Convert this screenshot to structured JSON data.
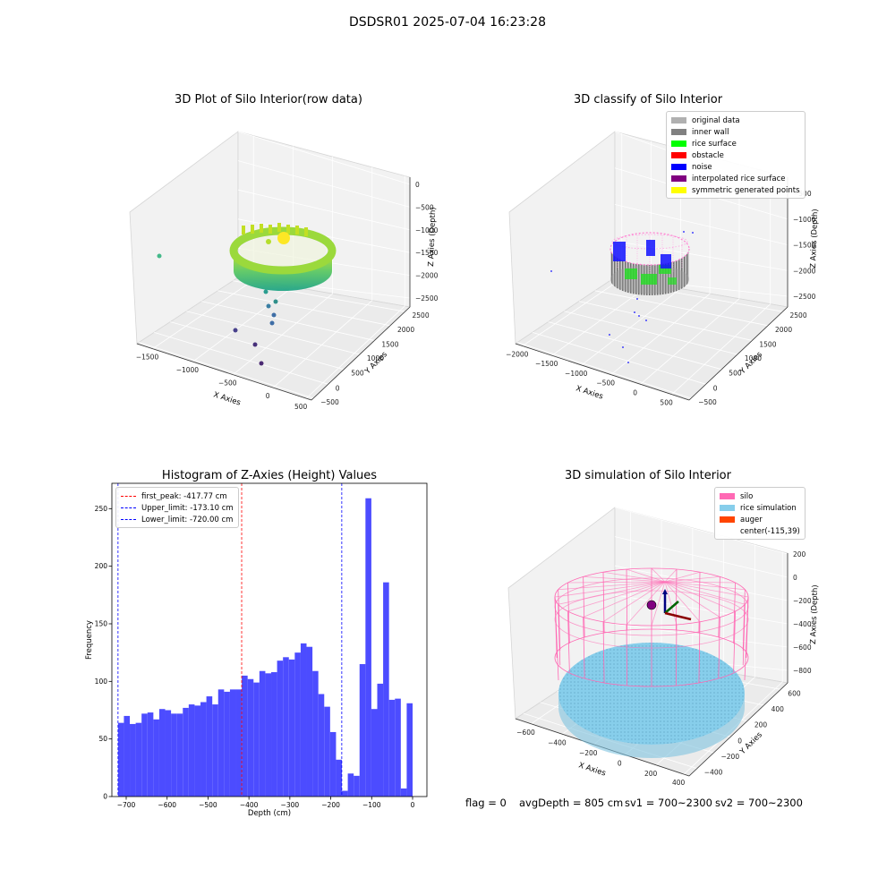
{
  "suptitle": "DSDSR01 2025-07-04 16:23:28",
  "footer": {
    "flag": "flag = 0",
    "avg_depth": "avgDepth = 805 cm",
    "sv1": "sv1 = 700~2300",
    "sv2": "sv2 = 700~2300"
  },
  "chart_data": [
    {
      "type": "scatter",
      "title": "3D Plot of Silo Interior(row data)",
      "xlabel": "X Axies",
      "ylabel": "Y Axies",
      "zlabel": "Z Axies (Depth)",
      "x_ticks": [
        "−1500",
        "−1000",
        "−500",
        "0",
        "500"
      ],
      "y_ticks": [
        "−500",
        "0",
        "500",
        "1000",
        "1500",
        "2000",
        "2500"
      ],
      "z_ticks": [
        "0",
        "−500",
        "−1000",
        "−1500",
        "−2000",
        "−2500"
      ],
      "colormap": "viridis"
    },
    {
      "type": "scatter",
      "title": "3D classify of Silo Interior",
      "xlabel": "X Axies",
      "ylabel": "Y Axies",
      "zlabel": "Z Axies (Depth)",
      "x_ticks": [
        "−2000",
        "−1500",
        "−1000",
        "−500",
        "0",
        "500"
      ],
      "y_ticks": [
        "−500",
        "0",
        "500",
        "1000",
        "1500",
        "2000",
        "2500"
      ],
      "z_ticks": [
        "−500",
        "−1000",
        "−1500",
        "−2000",
        "−2500"
      ],
      "legend": [
        {
          "label": "original data",
          "color": "#b0b0b0"
        },
        {
          "label": "inner wall",
          "color": "#808080"
        },
        {
          "label": "rice surface",
          "color": "#00ff00"
        },
        {
          "label": "obstacle",
          "color": "#ff0000"
        },
        {
          "label": "noise",
          "color": "#0000ff"
        },
        {
          "label": "interpolated rice surface",
          "color": "#800080"
        },
        {
          "label": "symmetric generated points",
          "color": "#ffff00"
        }
      ]
    },
    {
      "type": "bar",
      "title": "Histogram of Z-Axies (Height) Values",
      "xlabel": "Depth (cm)",
      "ylabel": "Frequency",
      "bar_color": "#4c4cff",
      "xlim": [
        -735,
        35
      ],
      "ylim": [
        0,
        272
      ],
      "x_ticks": [
        -700,
        -600,
        -500,
        -400,
        -300,
        -200,
        -100,
        0
      ],
      "y_ticks": [
        0,
        50,
        100,
        150,
        200,
        250
      ],
      "bin_start": -720,
      "bin_width": 14.4,
      "values": [
        64,
        70,
        63,
        64,
        72,
        73,
        67,
        76,
        75,
        72,
        72,
        77,
        80,
        79,
        82,
        87,
        80,
        93,
        91,
        93,
        93,
        105,
        102,
        99,
        109,
        107,
        108,
        118,
        121,
        119,
        125,
        133,
        130,
        109,
        89,
        78,
        56,
        32,
        5,
        20,
        18,
        115,
        259,
        76,
        98,
        186,
        84,
        85,
        7,
        81
      ],
      "vlines": [
        {
          "label": "first_peak: -417.77 cm",
          "x": -417.77,
          "color": "#ff0000"
        },
        {
          "label": "Upper_limit: -173.10 cm",
          "x": -173.1,
          "color": "#0000ff"
        },
        {
          "label": "Lower_limit: -720.00 cm",
          "x": -720.0,
          "color": "#0000ff"
        }
      ],
      "legend_position": "upper-left"
    },
    {
      "type": "scatter",
      "title": "3D simulation of Silo Interior",
      "xlabel": "X Axies",
      "ylabel": "Y Axies",
      "zlabel": "Z Axies (Depth)",
      "x_ticks": [
        "−600",
        "−400",
        "−200",
        "0",
        "200",
        "400"
      ],
      "y_ticks": [
        "−400",
        "−200",
        "0",
        "200",
        "400",
        "600"
      ],
      "z_ticks": [
        "200",
        "0",
        "−200",
        "−400",
        "−600",
        "−800"
      ],
      "legend": [
        {
          "label": "silo",
          "color": "#ff69b4"
        },
        {
          "label": "rice simulation",
          "color": "#87ceeb"
        },
        {
          "label": "auger",
          "color": "#ff4500"
        },
        {
          "label": "center(-115,39)",
          "color": ""
        }
      ]
    }
  ]
}
